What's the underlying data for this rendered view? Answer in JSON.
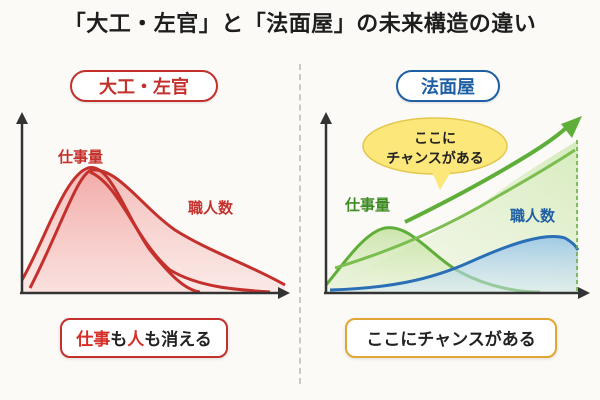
{
  "title": "「大工・左官」と「法面屋」の未来構造の違い",
  "colors": {
    "red": "#c4302b",
    "blue": "#1f5fa3",
    "green": "#5fae3a",
    "yellow": "#fbe77a",
    "gold": "#e0a735"
  },
  "left_badge": "大工・左官",
  "right_badge": "法面屋",
  "left_bottom": {
    "p1": "仕事",
    "p2": "も",
    "p3": "人",
    "p4": "も消える"
  },
  "right_bottom": "ここにチャンスがある",
  "chart_data": [
    {
      "type": "area",
      "title": "大工・左官",
      "series": [
        {
          "name": "仕事量",
          "points": [
            [
              0,
              0.18
            ],
            [
              0.14,
              0.5
            ],
            [
              0.25,
              0.88
            ],
            [
              0.4,
              0.55
            ],
            [
              0.55,
              0.2
            ],
            [
              0.7,
              0.05
            ],
            [
              0.8,
              0.0
            ]
          ]
        },
        {
          "name": "職人数",
          "points": [
            [
              0.1,
              0.1
            ],
            [
              0.3,
              0.82
            ],
            [
              0.45,
              0.62
            ],
            [
              0.62,
              0.38
            ],
            [
              0.8,
              0.22
            ],
            [
              1.0,
              0.05
            ]
          ]
        }
      ],
      "labels": {
        "series1": "仕事量",
        "series2": "職人数"
      }
    },
    {
      "type": "area",
      "title": "法面屋",
      "series": [
        {
          "name": "仕事量",
          "points": [
            [
              0,
              0.18
            ],
            [
              0.18,
              0.45
            ],
            [
              0.32,
              0.48
            ],
            [
              0.5,
              0.25
            ],
            [
              0.7,
              0.05
            ],
            [
              0.85,
              0.0
            ]
          ]
        },
        {
          "name": "職人数",
          "points": [
            [
              0,
              0.0
            ],
            [
              0.35,
              0.05
            ],
            [
              0.6,
              0.22
            ],
            [
              0.85,
              0.38
            ],
            [
              1.0,
              0.35
            ]
          ]
        },
        {
          "name": "成長トレンド",
          "points": [
            [
              0.05,
              0.22
            ],
            [
              0.4,
              0.48
            ],
            [
              0.75,
              0.75
            ],
            [
              1.0,
              1.0
            ]
          ]
        }
      ],
      "labels": {
        "series1": "仕事量",
        "series2": "職人数",
        "callout_line1": "ここに",
        "callout_line2": "チャンスがある"
      }
    }
  ]
}
